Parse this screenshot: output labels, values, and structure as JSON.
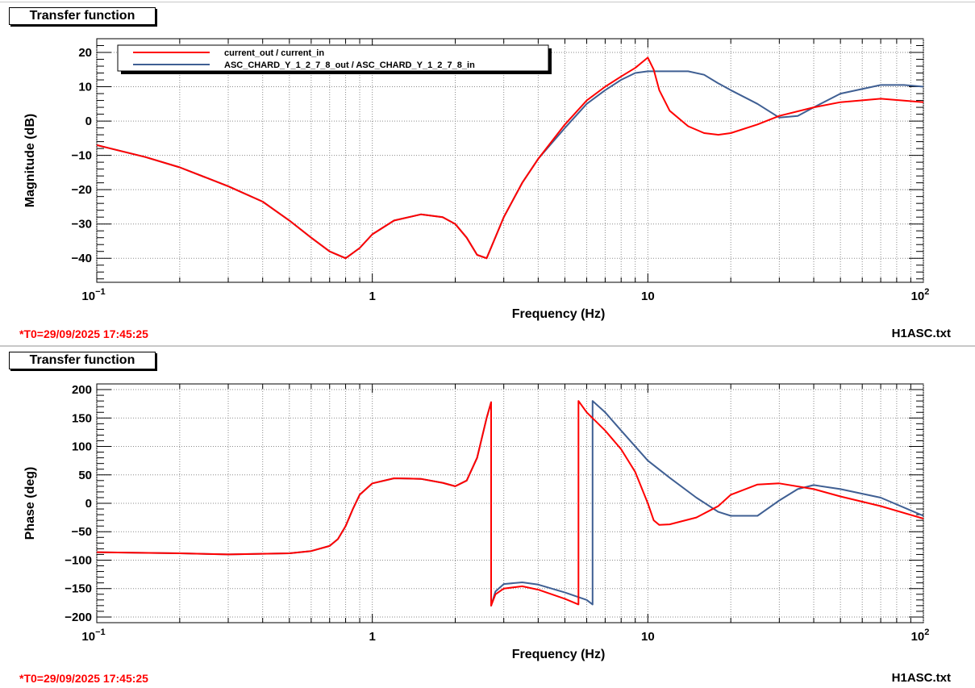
{
  "panels": [
    {
      "title": "Transfer function",
      "timestamp": "*T0=29/09/2025 17:45:25",
      "filename": "H1ASC.txt"
    },
    {
      "title": "Transfer function",
      "timestamp": "*T0=29/09/2025 17:45:25",
      "filename": "H1ASC.txt"
    }
  ],
  "colors": {
    "series_red": "#ff0000",
    "series_blue": "#3f5f93",
    "grid": "#8a8a8a"
  },
  "chart_data": [
    {
      "type": "line",
      "title": "Transfer function",
      "xlabel": "Frequency (Hz)",
      "ylabel": "Magnitude (dB)",
      "xscale": "log",
      "xlim": [
        0.1,
        100
      ],
      "ylim": [
        -47,
        24
      ],
      "xticks": [
        0.1,
        1,
        10,
        100
      ],
      "xtick_labels": [
        "10^-1",
        "1",
        "10",
        "10^2"
      ],
      "yticks": [
        -40,
        -30,
        -20,
        -10,
        0,
        10,
        20
      ],
      "ytick_labels": [
        "−40",
        "−30",
        "−20",
        "−10",
        "0",
        "10",
        "20"
      ],
      "grid": true,
      "legend": "top-left",
      "series": [
        {
          "name": "current_out / current_in",
          "color": "#ff0000",
          "x": [
            0.1,
            0.15,
            0.2,
            0.3,
            0.4,
            0.5,
            0.6,
            0.7,
            0.8,
            0.9,
            1.0,
            1.2,
            1.5,
            1.8,
            2.0,
            2.2,
            2.4,
            2.6,
            3.0,
            3.5,
            4.0,
            5.0,
            6.0,
            7.0,
            8.0,
            9.0,
            10.0,
            10.5,
            11,
            12,
            14,
            16,
            18,
            20,
            25,
            30,
            40,
            50,
            70,
            100
          ],
          "y": [
            -7,
            -10.5,
            -13.5,
            -19,
            -23.5,
            -29,
            -34,
            -38,
            -40,
            -37,
            -33,
            -29,
            -27.2,
            -28,
            -30,
            -34,
            -39,
            -40,
            -28,
            -18,
            -11,
            -1,
            6,
            10,
            13,
            15.5,
            18.5,
            15,
            9,
            3,
            -1.5,
            -3.5,
            -4,
            -3.5,
            -1,
            1.5,
            4,
            5.5,
            6.5,
            5.5
          ]
        },
        {
          "name": "ASC_CHARD_Y_1_2_7_8_out / ASC_CHARD_Y_1_2_7_8_in",
          "color": "#3f5f93",
          "x": [
            0.1,
            0.15,
            0.2,
            0.3,
            0.4,
            0.5,
            0.6,
            0.7,
            0.8,
            0.9,
            1.0,
            1.2,
            1.5,
            1.8,
            2.0,
            2.2,
            2.4,
            2.6,
            3.0,
            3.5,
            4.0,
            5.0,
            6.0,
            7.0,
            8.0,
            9.0,
            10,
            12,
            14,
            16,
            18,
            20,
            25,
            30,
            35,
            40,
            50,
            70,
            85,
            100
          ],
          "y": [
            -7,
            -10.5,
            -13.5,
            -19,
            -23.5,
            -29,
            -34,
            -38,
            -40,
            -37,
            -33,
            -29,
            -27.2,
            -28,
            -30,
            -34,
            -39,
            -40,
            -28,
            -18,
            -11,
            -2,
            5,
            9,
            12,
            14,
            14.5,
            14.5,
            14.5,
            13.5,
            11,
            9,
            5,
            1,
            1.5,
            4,
            8,
            10.5,
            10.5,
            10
          ]
        }
      ]
    },
    {
      "type": "line",
      "title": "Transfer function",
      "xlabel": "Frequency (Hz)",
      "ylabel": "Phase (deg)",
      "xscale": "log",
      "xlim": [
        0.1,
        100
      ],
      "ylim": [
        -210,
        210
      ],
      "xticks": [
        0.1,
        1,
        10,
        100
      ],
      "xtick_labels": [
        "10^-1",
        "1",
        "10",
        "10^2"
      ],
      "yticks": [
        -200,
        -150,
        -100,
        -50,
        0,
        50,
        100,
        150,
        200
      ],
      "ytick_labels": [
        "−200",
        "−150",
        "−100",
        "−50",
        "0",
        "50",
        "100",
        "150",
        "200"
      ],
      "grid": true,
      "series": [
        {
          "name": "current_out / current_in",
          "color": "#ff0000",
          "x": [
            0.1,
            0.2,
            0.3,
            0.5,
            0.6,
            0.7,
            0.75,
            0.8,
            0.85,
            0.9,
            1.0,
            1.2,
            1.5,
            1.8,
            2.0,
            2.2,
            2.4,
            2.6,
            2.7,
            2.7,
            2.8,
            3.0,
            3.5,
            4.0,
            5.0,
            5.6,
            5.6,
            6.0,
            7.0,
            8.0,
            9.0,
            10.0,
            10.5,
            11.0,
            12,
            15,
            18,
            20,
            25,
            30,
            40,
            50,
            70,
            100
          ],
          "y": [
            -86,
            -88,
            -90,
            -88,
            -84,
            -75,
            -63,
            -40,
            -10,
            15,
            35,
            44,
            43,
            36,
            30,
            40,
            80,
            150,
            178,
            -180,
            -160,
            -150,
            -146,
            -152,
            -168,
            -178,
            180,
            160,
            128,
            95,
            55,
            0,
            -30,
            -38,
            -37,
            -25,
            -5,
            15,
            33,
            35,
            25,
            12,
            -5,
            -27
          ]
        },
        {
          "name": "ASC_CHARD_Y_1_2_7_8_out / ASC_CHARD_Y_1_2_7_8_in",
          "color": "#3f5f93",
          "x": [
            0.1,
            0.2,
            0.3,
            0.5,
            0.6,
            0.7,
            0.75,
            0.8,
            0.85,
            0.9,
            1.0,
            1.2,
            1.5,
            1.8,
            2.0,
            2.2,
            2.4,
            2.6,
            2.7,
            2.7,
            2.8,
            3.0,
            3.5,
            4.0,
            5.0,
            6.0,
            6.3,
            6.3,
            7.0,
            8.0,
            10.0,
            12,
            15,
            18,
            20,
            25,
            30,
            35,
            40,
            50,
            70,
            100
          ],
          "y": [
            -86,
            -88,
            -90,
            -88,
            -84,
            -75,
            -63,
            -40,
            -10,
            15,
            35,
            44,
            43,
            36,
            30,
            40,
            80,
            150,
            178,
            -180,
            -155,
            -142,
            -139,
            -143,
            -157,
            -170,
            -178,
            180,
            160,
            128,
            75,
            45,
            10,
            -15,
            -22,
            -22,
            5,
            25,
            32,
            25,
            10,
            -22
          ]
        }
      ]
    }
  ]
}
